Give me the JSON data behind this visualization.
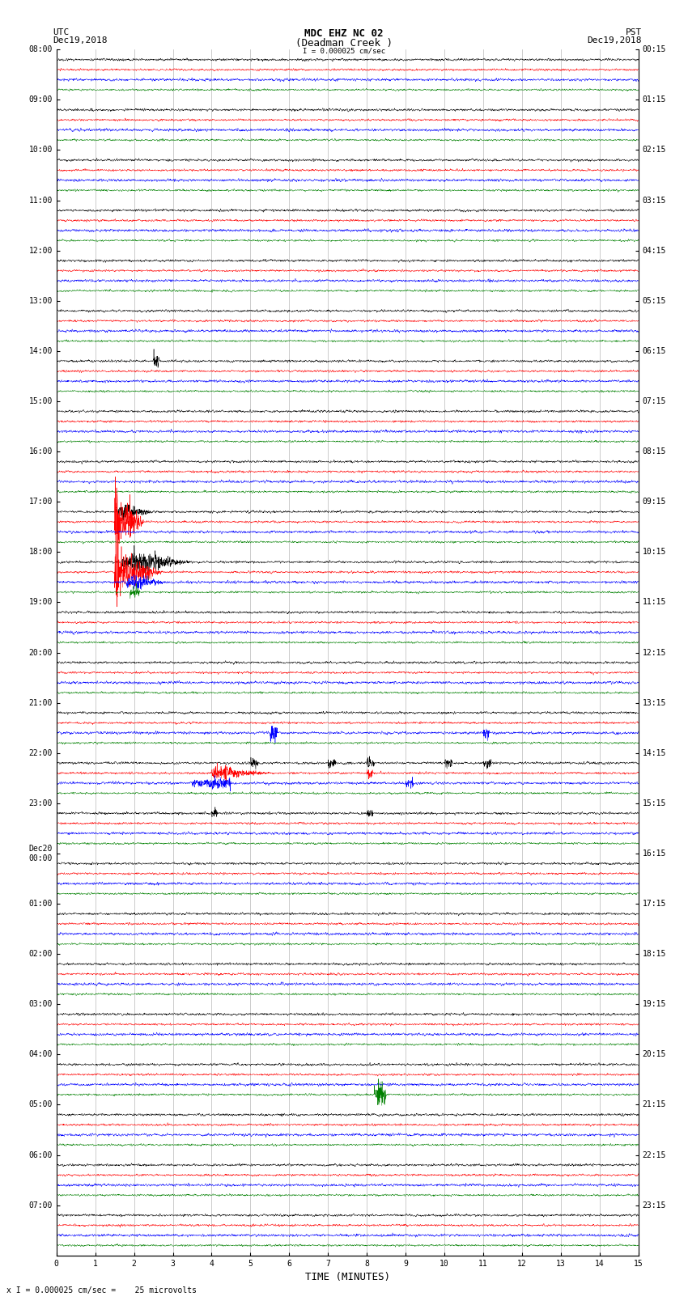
{
  "title_line1": "MDC EHZ NC 02",
  "title_line2": "(Deadman Creek )",
  "title_line3": "I = 0.000025 cm/sec",
  "label_left": "UTC",
  "label_left2": "Dec19,2018",
  "label_right": "PST",
  "label_right2": "Dec19,2018",
  "xlabel": "TIME (MINUTES)",
  "footer": "x I = 0.000025 cm/sec =    25 microvolts",
  "bg_color": "#ffffff",
  "trace_colors": [
    "black",
    "red",
    "blue",
    "green"
  ],
  "left_times": [
    "08:00",
    "09:00",
    "10:00",
    "11:00",
    "12:00",
    "13:00",
    "14:00",
    "15:00",
    "16:00",
    "17:00",
    "18:00",
    "19:00",
    "20:00",
    "21:00",
    "22:00",
    "23:00",
    "Dec20\n00:00",
    "01:00",
    "02:00",
    "03:00",
    "04:00",
    "05:00",
    "06:00",
    "07:00"
  ],
  "right_times": [
    "00:15",
    "01:15",
    "02:15",
    "03:15",
    "04:15",
    "05:15",
    "06:15",
    "07:15",
    "08:15",
    "09:15",
    "10:15",
    "11:15",
    "12:15",
    "13:15",
    "14:15",
    "15:15",
    "16:15",
    "17:15",
    "18:15",
    "19:15",
    "20:15",
    "21:15",
    "22:15",
    "23:15"
  ],
  "n_rows": 24,
  "n_traces_per_row": 4,
  "xmin": 0,
  "xmax": 15,
  "title_fontsize": 9,
  "tick_fontsize": 7,
  "label_fontsize": 8,
  "footer_fontsize": 7
}
